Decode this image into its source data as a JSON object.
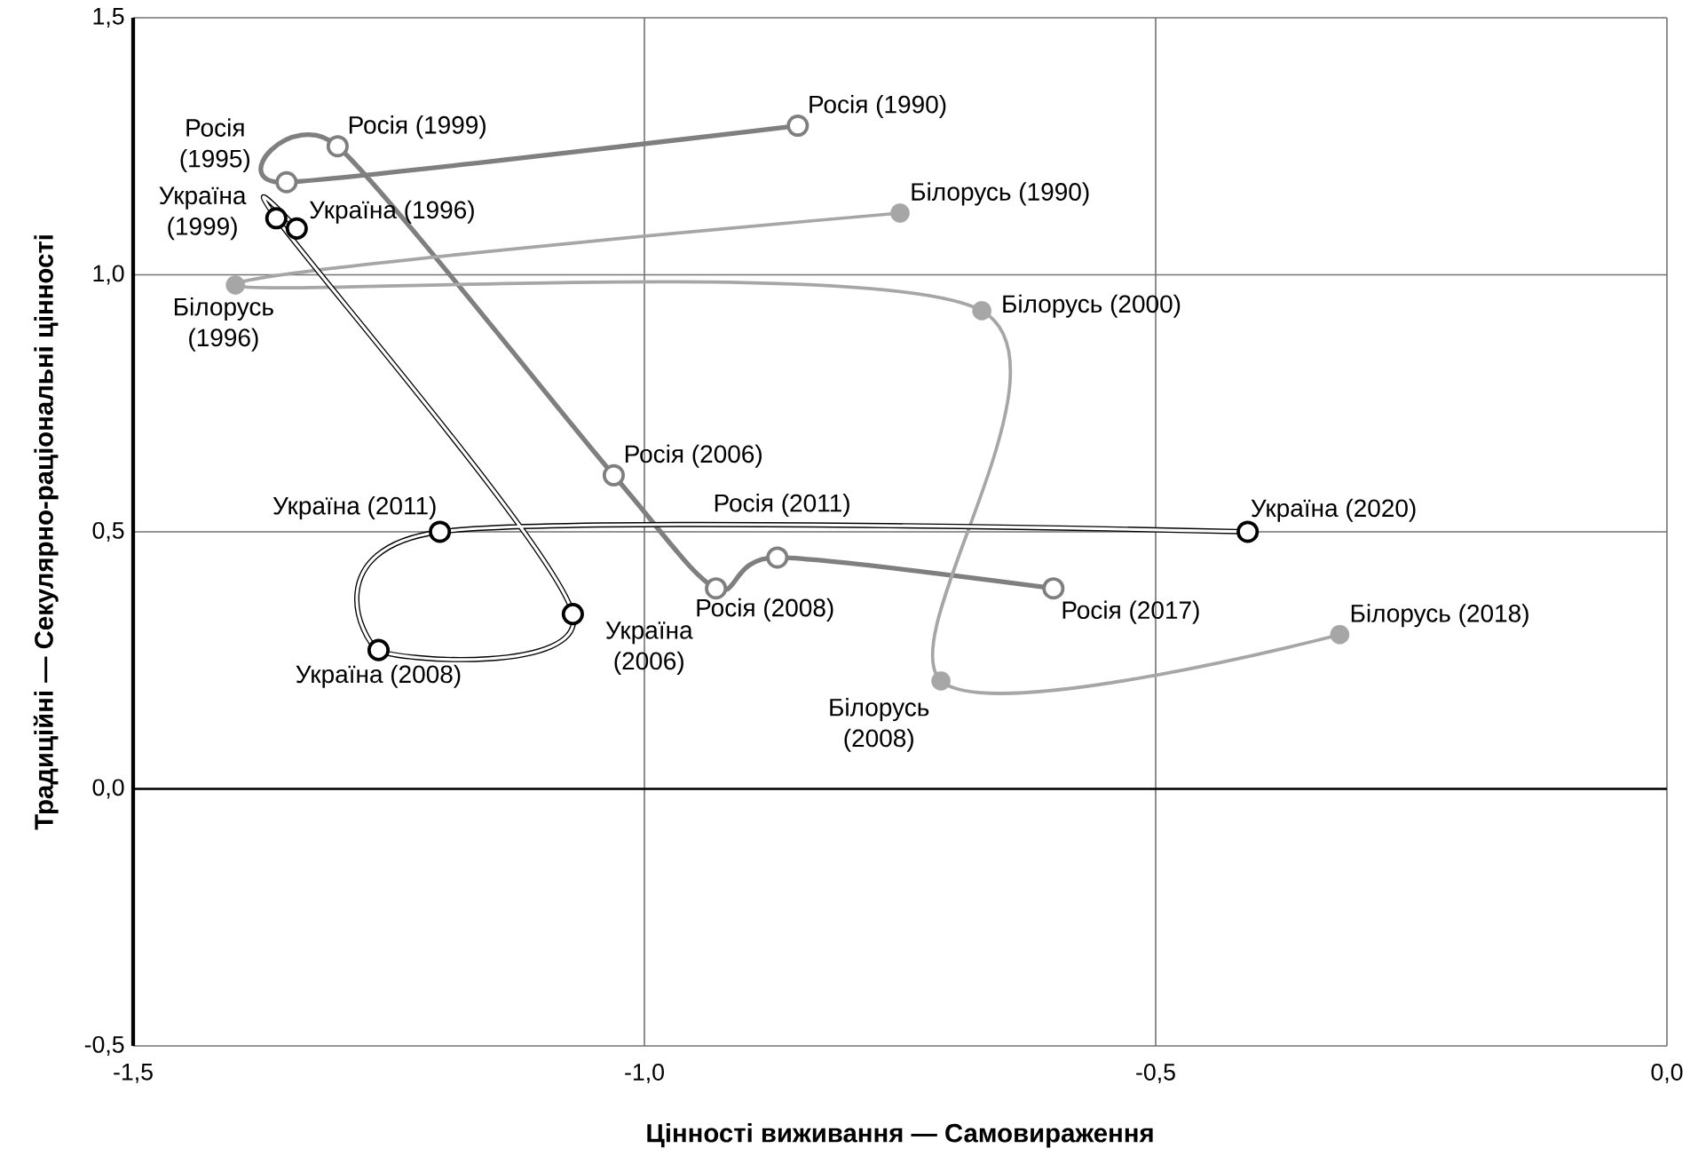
{
  "chart_data": {
    "type": "line",
    "xlabel": "Цінності виживання — Самовираження",
    "ylabel": "Традиційні — Секулярно-раціональні цінності",
    "xlim": [
      -1.5,
      0.0
    ],
    "ylim": [
      -0.5,
      1.5
    ],
    "xticks": [
      {
        "value": -1.5,
        "label": "-1,5"
      },
      {
        "value": -1.0,
        "label": "-1,0"
      },
      {
        "value": -0.5,
        "label": "-0,5"
      },
      {
        "value": 0.0,
        "label": "0,0"
      }
    ],
    "yticks": [
      {
        "value": -0.5,
        "label": "-0,5"
      },
      {
        "value": 0.0,
        "label": "0,0"
      },
      {
        "value": 0.5,
        "label": "0,5"
      },
      {
        "value": 1.0,
        "label": "1,0"
      },
      {
        "value": 1.5,
        "label": "1,5"
      }
    ],
    "grid": true,
    "marker": "circle",
    "line_style": "solid",
    "series": [
      {
        "color": "#7f7f7f",
        "x": [
          -0.85,
          -1.35,
          -1.3,
          -1.03,
          -0.93,
          -0.87,
          -0.6
        ],
        "values": [
          1.29,
          1.18,
          1.25,
          0.61,
          0.39,
          0.45,
          0.39
        ]
      },
      {
        "color": "#a6a6a6",
        "x": [
          -0.75,
          -1.4,
          -0.67,
          -0.71,
          -0.32
        ],
        "values": [
          1.12,
          0.98,
          0.93,
          0.21,
          0.3
        ]
      },
      {
        "color": "#000000",
        "x": [
          -1.34,
          -1.36,
          -1.07,
          -1.26,
          -1.2,
          -0.41
        ],
        "values": [
          1.09,
          1.11,
          0.34,
          0.27,
          0.5,
          0.5
        ]
      }
    ],
    "annotations": [
      {
        "text": "Росія (1990)",
        "x": -0.85,
        "y": 1.29
      },
      {
        "text": "Росія (1995)",
        "x": -1.35,
        "y": 1.18
      },
      {
        "text": "Росія (1999)",
        "x": -1.3,
        "y": 1.25
      },
      {
        "text": "Росія (2006)",
        "x": -1.03,
        "y": 0.61
      },
      {
        "text": "Росія (2008)",
        "x": -0.93,
        "y": 0.39
      },
      {
        "text": "Росія (2011)",
        "x": -0.87,
        "y": 0.45
      },
      {
        "text": "Росія (2017)",
        "x": -0.6,
        "y": 0.39
      },
      {
        "text": "Білорусь (1990)",
        "x": -0.75,
        "y": 1.12
      },
      {
        "text": "Білорусь (1996)",
        "x": -1.4,
        "y": 0.98
      },
      {
        "text": "Білорусь (2000)",
        "x": -0.67,
        "y": 0.93
      },
      {
        "text": "Білорусь (2008)",
        "x": -0.71,
        "y": 0.21
      },
      {
        "text": "Білорусь (2018)",
        "x": -0.32,
        "y": 0.3
      },
      {
        "text": "Україна (1996)",
        "x": -1.34,
        "y": 1.09
      },
      {
        "text": "Україна (1999)",
        "x": -1.36,
        "y": 1.11
      },
      {
        "text": "Україна (2006)",
        "x": -1.07,
        "y": 0.34
      },
      {
        "text": "Україна (2008)",
        "x": -1.26,
        "y": 0.27
      },
      {
        "text": "Україна (2011)",
        "x": -1.2,
        "y": 0.5
      },
      {
        "text": "Україна (2020)",
        "x": -0.41,
        "y": 0.5
      }
    ]
  }
}
